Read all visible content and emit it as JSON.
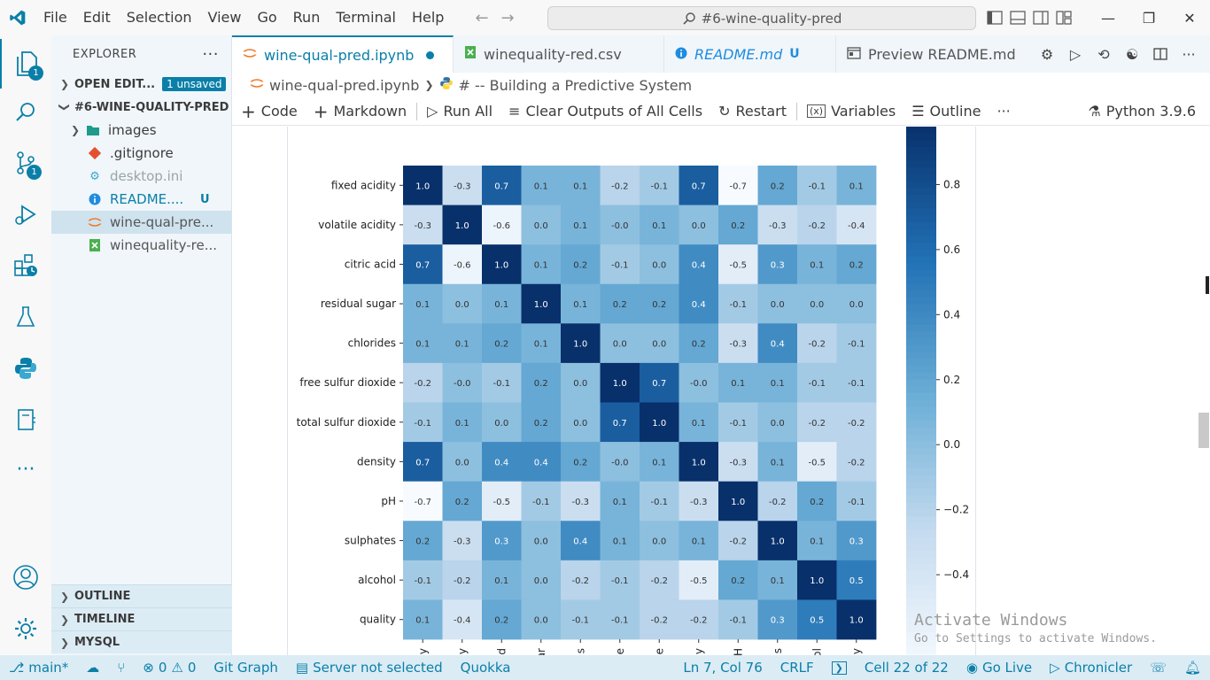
{
  "menu": [
    "File",
    "Edit",
    "Selection",
    "View",
    "Go",
    "Run",
    "Terminal",
    "Help"
  ],
  "command_center": "#6-wine-quality-pred",
  "activity_badges": {
    "explorer": "1",
    "scm": "1"
  },
  "sidebar": {
    "title": "EXPLORER",
    "open_editors": "OPEN EDIT...",
    "unsaved_badge": "1 unsaved",
    "folder": "#6-WINE-QUALITY-PRED",
    "items": [
      {
        "label": "images",
        "type": "folder"
      },
      {
        "label": ".gitignore",
        "type": "git"
      },
      {
        "label": "desktop.ini",
        "type": "ini"
      },
      {
        "label": "README....",
        "type": "info",
        "status": "U"
      },
      {
        "label": "wine-qual-pre...",
        "type": "notebook"
      },
      {
        "label": "winequality-re...",
        "type": "csv"
      }
    ],
    "bottom_sections": [
      "OUTLINE",
      "TIMELINE",
      "MYSQL"
    ]
  },
  "tabs": [
    {
      "label": "wine-qual-pred.ipynb",
      "active": true,
      "dirty": true
    },
    {
      "label": "winequality-red.csv"
    },
    {
      "label": "README.md",
      "status": "U"
    },
    {
      "label": "Preview README.md"
    }
  ],
  "breadcrumb": [
    "wine-qual-pred.ipynb",
    "# -- Building a Predictive System"
  ],
  "toolbar": {
    "code": "Code",
    "markdown": "Markdown",
    "run_all": "Run All",
    "clear": "Clear Outputs of All Cells",
    "restart": "Restart",
    "variables": "Variables",
    "outline": "Outline",
    "more": "···",
    "kernel": "Python 3.9.6"
  },
  "watermark": {
    "line1": "Activate Windows",
    "line2": "Go to Settings to activate Windows."
  },
  "status": {
    "branch": "main*",
    "errors": "0",
    "warnings": "0",
    "git_graph": "Git Graph",
    "server": "Server not selected",
    "quokka": "Quokka",
    "position": "Ln 7, Col 76",
    "eol": "CRLF",
    "cell": "Cell 22 of 22",
    "go_live": "Go Live",
    "chronicler": "Chronicler"
  },
  "colors": {
    "accent": "#0a7fa8",
    "cmap_low": "#f7fbff",
    "cmap_high": "#08306b"
  },
  "chart_data": {
    "type": "heatmap",
    "rows": [
      "fixed acidity",
      "volatile acidity",
      "citric acid",
      "residual sugar",
      "chlorides",
      "free sulfur dioxide",
      "total sulfur dioxide",
      "density",
      "pH",
      "sulphates",
      "alcohol",
      "quality"
    ],
    "col_tick_fragments": [
      "y",
      "y",
      "d",
      "ar",
      "s",
      "e",
      "e",
      "y",
      "H",
      "s",
      "ol",
      "y"
    ],
    "values": [
      [
        1.0,
        -0.3,
        0.7,
        0.1,
        0.1,
        -0.2,
        -0.1,
        0.7,
        -0.7,
        0.2,
        -0.1,
        0.1
      ],
      [
        -0.3,
        1.0,
        -0.6,
        0.0,
        0.1,
        -0.0,
        0.1,
        0.0,
        0.2,
        -0.3,
        -0.2,
        -0.4
      ],
      [
        0.7,
        -0.6,
        1.0,
        0.1,
        0.2,
        -0.1,
        0.0,
        0.4,
        -0.5,
        0.3,
        0.1,
        0.2
      ],
      [
        0.1,
        0.0,
        0.1,
        1.0,
        0.1,
        0.2,
        0.2,
        0.4,
        -0.1,
        0.0,
        0.0,
        0.0
      ],
      [
        0.1,
        0.1,
        0.2,
        0.1,
        1.0,
        0.0,
        0.0,
        0.2,
        -0.3,
        0.4,
        -0.2,
        -0.1
      ],
      [
        -0.2,
        -0.0,
        -0.1,
        0.2,
        0.0,
        1.0,
        0.7,
        -0.0,
        0.1,
        0.1,
        -0.1,
        -0.1
      ],
      [
        -0.1,
        0.1,
        0.0,
        0.2,
        0.0,
        0.7,
        1.0,
        0.1,
        -0.1,
        0.0,
        -0.2,
        -0.2
      ],
      [
        0.7,
        0.0,
        0.4,
        0.4,
        0.2,
        -0.0,
        0.1,
        1.0,
        -0.3,
        0.1,
        -0.5,
        -0.2
      ],
      [
        -0.7,
        0.2,
        -0.5,
        -0.1,
        -0.3,
        0.1,
        -0.1,
        -0.3,
        1.0,
        -0.2,
        0.2,
        -0.1
      ],
      [
        0.2,
        -0.3,
        0.3,
        0.0,
        0.4,
        0.1,
        0.0,
        0.1,
        -0.2,
        1.0,
        0.1,
        0.3
      ],
      [
        -0.1,
        -0.2,
        0.1,
        0.0,
        -0.2,
        -0.1,
        -0.2,
        -0.5,
        0.2,
        0.1,
        1.0,
        0.5
      ],
      [
        0.1,
        -0.4,
        0.2,
        0.0,
        -0.1,
        -0.1,
        -0.2,
        -0.2,
        -0.1,
        0.3,
        0.5,
        1.0
      ]
    ],
    "colorbar_ticks": [
      "0.8",
      "0.6",
      "0.4",
      "0.2",
      "0.0",
      "−0.2",
      "−0.4"
    ],
    "colorbar_tick_values": [
      0.8,
      0.6,
      0.4,
      0.2,
      0.0,
      -0.2,
      -0.4
    ],
    "vmin": -0.683,
    "vmax": 1.0,
    "colormap": "Blues",
    "annot": true,
    "fmt": ".1f"
  }
}
